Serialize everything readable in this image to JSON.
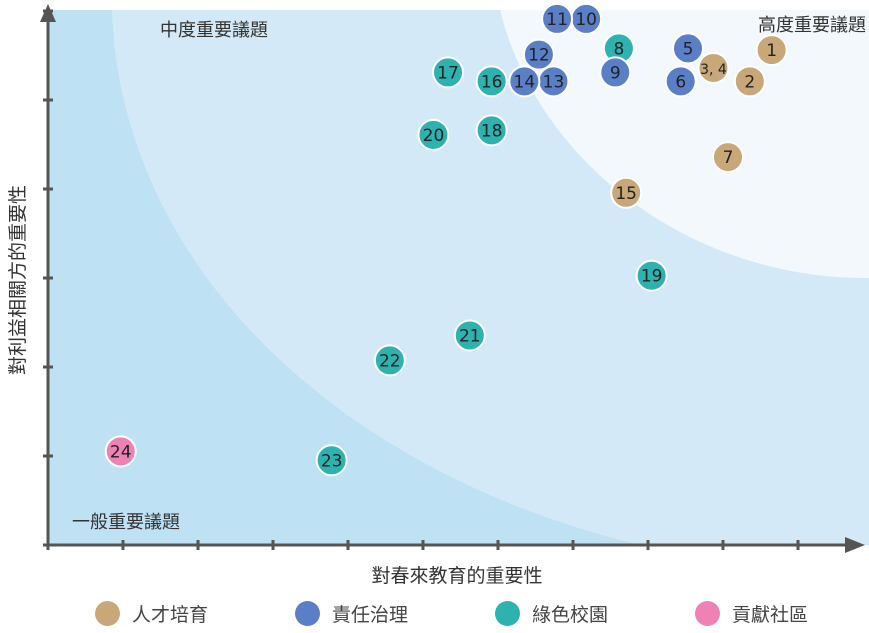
{
  "chart_data": {
    "type": "scatter",
    "xlabel": "對春來教育的重要性",
    "ylabel": "對利益相關方的重要性",
    "xlim": [
      0,
      11
    ],
    "ylim": [
      0,
      6
    ],
    "x_ticks": 11,
    "y_ticks": 6,
    "grid": false,
    "legend_position": "bottom",
    "zones": [
      {
        "label": "一般重要議題"
      },
      {
        "label": "中度重要議題"
      },
      {
        "label": "高度重要議題"
      }
    ],
    "categories": [
      {
        "name": "人才培育",
        "color": "#c8a878"
      },
      {
        "name": "責任治理",
        "color": "#5b7fc7"
      },
      {
        "name": "綠色校園",
        "color": "#2db2b0"
      },
      {
        "name": "貢獻社區",
        "color": "#ee82b4"
      }
    ],
    "points": [
      {
        "label": "1",
        "x": 9.95,
        "y": 5.55,
        "category": 0
      },
      {
        "label": "2",
        "x": 9.65,
        "y": 5.2,
        "category": 0
      },
      {
        "label": "3, 4",
        "x": 9.15,
        "y": 5.35,
        "category": 0
      },
      {
        "label": "5",
        "x": 8.8,
        "y": 5.57,
        "category": 1
      },
      {
        "label": "6",
        "x": 8.7,
        "y": 5.2,
        "category": 1
      },
      {
        "label": "7",
        "x": 9.35,
        "y": 4.35,
        "category": 0
      },
      {
        "label": "8",
        "x": 7.85,
        "y": 5.57,
        "category": 2
      },
      {
        "label": "9",
        "x": 7.8,
        "y": 5.3,
        "category": 1
      },
      {
        "label": "10",
        "x": 7.4,
        "y": 5.9,
        "category": 1
      },
      {
        "label": "11",
        "x": 7.0,
        "y": 5.9,
        "category": 1
      },
      {
        "label": "12",
        "x": 6.75,
        "y": 5.5,
        "category": 1
      },
      {
        "label": "13",
        "x": 6.95,
        "y": 5.2,
        "category": 1
      },
      {
        "label": "14",
        "x": 6.55,
        "y": 5.2,
        "category": 1
      },
      {
        "label": "15",
        "x": 7.95,
        "y": 3.95,
        "category": 0
      },
      {
        "label": "16",
        "x": 6.1,
        "y": 5.2,
        "category": 2
      },
      {
        "label": "17",
        "x": 5.5,
        "y": 5.3,
        "category": 2
      },
      {
        "label": "18",
        "x": 6.1,
        "y": 4.65,
        "category": 2
      },
      {
        "label": "19",
        "x": 8.3,
        "y": 3.02,
        "category": 2
      },
      {
        "label": "20",
        "x": 5.3,
        "y": 4.6,
        "category": 2
      },
      {
        "label": "21",
        "x": 5.8,
        "y": 2.35,
        "category": 2
      },
      {
        "label": "22",
        "x": 4.7,
        "y": 2.07,
        "category": 2
      },
      {
        "label": "23",
        "x": 3.9,
        "y": 0.95,
        "category": 2
      },
      {
        "label": "24",
        "x": 1.0,
        "y": 1.05,
        "category": 3
      }
    ]
  }
}
